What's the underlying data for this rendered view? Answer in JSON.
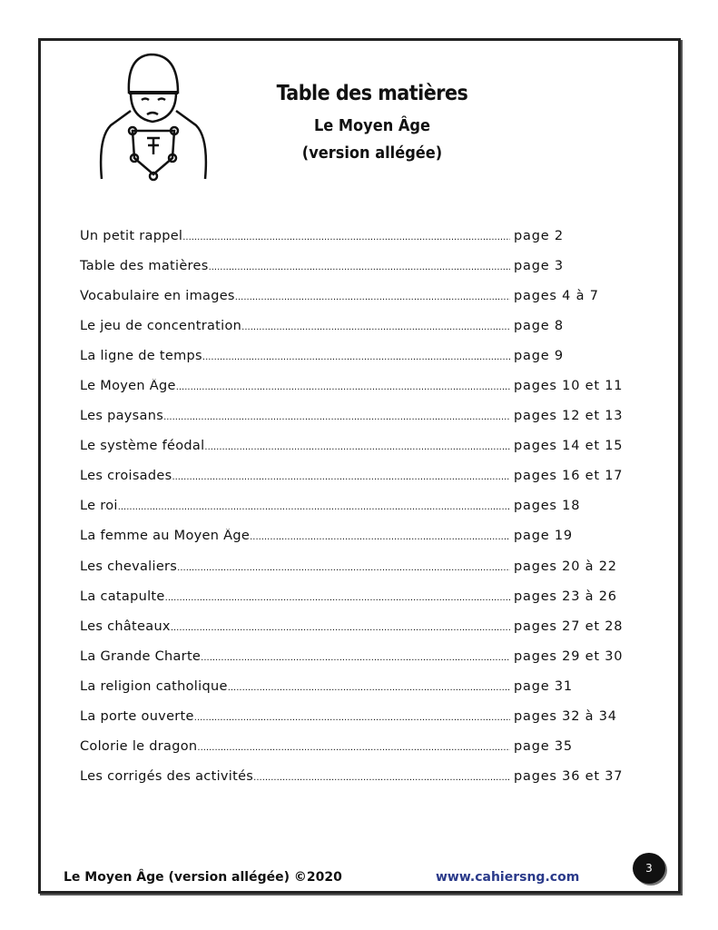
{
  "header": {
    "title": "Table des matières",
    "subtitle": "Le Moyen Âge",
    "version": "(version allégée)"
  },
  "toc": [
    {
      "label": "Un petit rappel",
      "page": "page 2"
    },
    {
      "label": "Table des matières",
      "page": "page 3"
    },
    {
      "label": "Vocabulaire en images",
      "page": "pages 4 à 7"
    },
    {
      "label": "Le jeu de concentration",
      "page": "page 8"
    },
    {
      "label": "La ligne de temps",
      "page": "page 9"
    },
    {
      "label": "Le Moyen Âge",
      "page": "pages 10 et 11"
    },
    {
      "label": "Les paysans",
      "page": "pages 12 et 13"
    },
    {
      "label": "Le système féodal",
      "page": "pages 14 et 15"
    },
    {
      "label": "Les croisades",
      "page": "pages 16 et 17"
    },
    {
      "label": "Le roi",
      "page": "pages 18"
    },
    {
      "label": "La femme au Moyen Âge",
      "page": "page 19"
    },
    {
      "label": "Les chevaliers",
      "page": "pages 20 à 22"
    },
    {
      "label": "La catapulte",
      "page": "pages 23 à 26"
    },
    {
      "label": "Les châteaux",
      "page": "pages 27 et 28"
    },
    {
      "label": "La Grande Charte",
      "page": "pages 29 et 30"
    },
    {
      "label": "La religion catholique",
      "page": "page 31"
    },
    {
      "label": "La porte ouverte",
      "page": "pages 32 à 34"
    },
    {
      "label": "Colorie le dragon",
      "page": "page 35"
    },
    {
      "label": "Les corrigés des activités",
      "page": "pages 36 et 37"
    }
  ],
  "footer": {
    "left": "Le Moyen Âge (version allégée) ©2020",
    "url": "www.cahiersng.com",
    "page_number": "3"
  }
}
